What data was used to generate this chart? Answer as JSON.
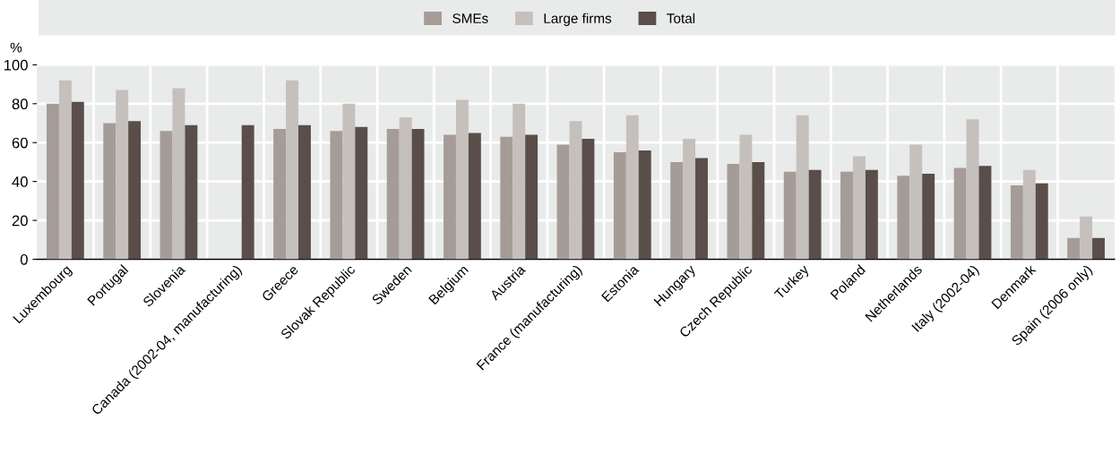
{
  "chart_data": {
    "type": "bar",
    "ylabel": "%",
    "categories": [
      "Luxembourg",
      "Portugal",
      "Slovenia",
      "Canada (2002-04, manufacturing)",
      "Greece",
      "Slovak Republic",
      "Sweden",
      "Belgium",
      "Austria",
      "France (manufacturing)",
      "Estonia",
      "Hungary",
      "Czech Republic",
      "Turkey",
      "Poland",
      "Netherlands",
      "Italy (2002-04)",
      "Denmark",
      "Spain (2006 only)"
    ],
    "series": [
      {
        "name": "SMEs",
        "color": "#a59c97",
        "values": [
          80,
          70,
          66,
          null,
          67,
          66,
          67,
          64,
          63,
          59,
          55,
          50,
          49,
          45,
          45,
          43,
          47,
          38,
          11
        ]
      },
      {
        "name": "Large firms",
        "color": "#c5c0bc",
        "values": [
          92,
          87,
          88,
          null,
          92,
          80,
          73,
          82,
          80,
          71,
          74,
          62,
          64,
          74,
          53,
          59,
          72,
          46,
          22
        ]
      },
      {
        "name": "Total",
        "color": "#5a4e4a",
        "values": [
          81,
          71,
          69,
          69,
          69,
          68,
          67,
          65,
          64,
          62,
          56,
          52,
          50,
          46,
          46,
          44,
          48,
          39,
          11
        ]
      }
    ],
    "ylim": [
      0,
      100
    ],
    "yticks": [
      0,
      20,
      40,
      60,
      80,
      100
    ],
    "grid": true,
    "legend": "top"
  }
}
